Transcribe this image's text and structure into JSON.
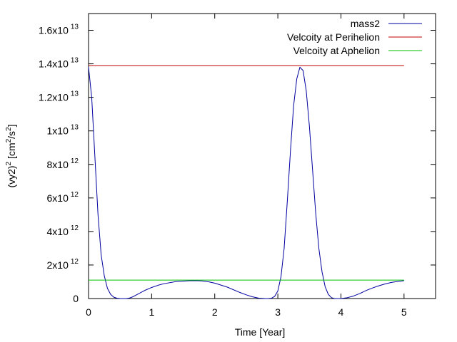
{
  "chart_data": {
    "type": "line",
    "xlabel": "Time [Year]",
    "ylabel": {
      "base": "(vy2)",
      "base_exp": "2",
      "unit_open": " [cm",
      "unit_exp1": "2",
      "unit_mid": "/s",
      "unit_exp2": "2",
      "unit_close": "]"
    },
    "xlim": [
      0,
      5.5
    ],
    "ylim": [
      0,
      17000000000000.0
    ],
    "grid": false,
    "legend_position": "top-right",
    "x_ticks": [
      {
        "value": 0,
        "label": "0"
      },
      {
        "value": 1,
        "label": "1"
      },
      {
        "value": 2,
        "label": "2"
      },
      {
        "value": 3,
        "label": "3"
      },
      {
        "value": 4,
        "label": "4"
      },
      {
        "value": 5,
        "label": "5"
      }
    ],
    "y_ticks": [
      {
        "value": 0,
        "mant": "0",
        "exp": ""
      },
      {
        "value": 2000000000000.0,
        "mant": "2x10",
        "exp": "12"
      },
      {
        "value": 4000000000000.0,
        "mant": "4x10",
        "exp": "12"
      },
      {
        "value": 6000000000000.0,
        "mant": "6x10",
        "exp": "12"
      },
      {
        "value": 8000000000000.0,
        "mant": "8x10",
        "exp": "12"
      },
      {
        "value": 10000000000000.0,
        "mant": "1x10",
        "exp": "13"
      },
      {
        "value": 12000000000000.0,
        "mant": "1.2x10",
        "exp": "13"
      },
      {
        "value": 14000000000000.0,
        "mant": "1.4x10",
        "exp": "13"
      },
      {
        "value": 16000000000000.0,
        "mant": "1.6x10",
        "exp": "13"
      }
    ],
    "series": [
      {
        "name": "mass2",
        "color": "#0000a0",
        "kind": "curve",
        "x": [
          0,
          0.05,
          0.1,
          0.15,
          0.2,
          0.25,
          0.3,
          0.35,
          0.4,
          0.45,
          0.5,
          0.55,
          0.6,
          0.65,
          0.7,
          0.8,
          0.9,
          1.0,
          1.1,
          1.2,
          1.4,
          1.6,
          1.7,
          1.8,
          1.9,
          2.0,
          2.2,
          2.4,
          2.5,
          2.6,
          2.7,
          2.8,
          2.85,
          2.9,
          2.95,
          3.0,
          3.05,
          3.1,
          3.15,
          3.2,
          3.25,
          3.3,
          3.35,
          3.4,
          3.45,
          3.5,
          3.55,
          3.6,
          3.65,
          3.7,
          3.75,
          3.8,
          3.85,
          3.9,
          3.95,
          4.0,
          4.1,
          4.2,
          4.3,
          4.4,
          4.5,
          4.6,
          4.7,
          4.8,
          4.9,
          5.0
        ],
        "y": [
          13800000000000.0,
          12000000000000.0,
          8500000000000.0,
          5000000000000.0,
          2600000000000.0,
          1350000000000.0,
          600000000000.0,
          250000000000.0,
          80000000000.0,
          20000000000.0,
          0,
          0,
          0,
          30000000000.0,
          100000000000.0,
          300000000000.0,
          500000000000.0,
          660000000000.0,
          790000000000.0,
          890000000000.0,
          1020000000000.0,
          1060000000000.0,
          1070000000000.0,
          1050000000000.0,
          1000000000000.0,
          920000000000.0,
          680000000000.0,
          360000000000.0,
          220000000000.0,
          100000000000.0,
          20000000000.0,
          0,
          0,
          20000000000.0,
          130000000000.0,
          450000000000.0,
          1300000000000.0,
          3000000000000.0,
          5800000000000.0,
          8800000000000.0,
          11500000000000.0,
          13100000000000.0,
          13800000000000.0,
          13600000000000.0,
          12400000000000.0,
          10300000000000.0,
          7700000000000.0,
          5100000000000.0,
          3000000000000.0,
          1600000000000.0,
          700000000000.0,
          250000000000.0,
          50000000000.0,
          0,
          0,
          0,
          50000000000.0,
          150000000000.0,
          300000000000.0,
          480000000000.0,
          630000000000.0,
          760000000000.0,
          870000000000.0,
          960000000000.0,
          1020000000000.0,
          1070000000000.0
        ]
      },
      {
        "name": "Velcoity at Perihelion",
        "color": "#c00000",
        "kind": "hline",
        "x": [
          0,
          5
        ],
        "y": [
          13900000000000.0,
          13900000000000.0
        ]
      },
      {
        "name": "Velcoity at Aphelion",
        "color": "#00c000",
        "kind": "hline",
        "x": [
          0,
          5
        ],
        "y": [
          1100000000000.0,
          1100000000000.0
        ]
      }
    ]
  }
}
